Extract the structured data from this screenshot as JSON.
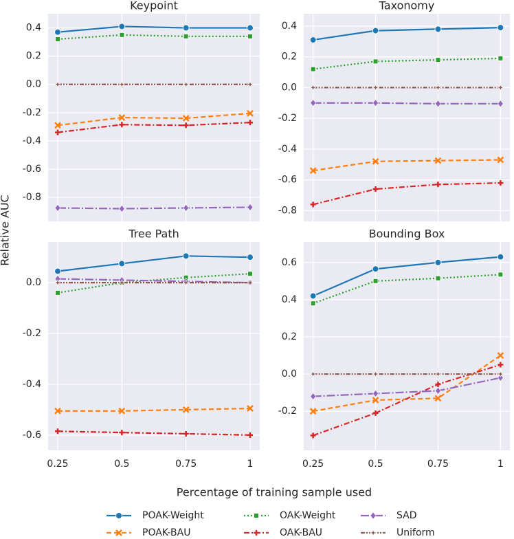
{
  "chart_data": [
    {
      "type": "line",
      "title": "Keypoint",
      "x": [
        0.25,
        0.5,
        0.75,
        1
      ],
      "xlim": [
        0.2125,
        1.0375
      ],
      "xticks": [
        0.25,
        0.5,
        0.75,
        1
      ],
      "ylim": [
        -0.97,
        0.5
      ],
      "yticks": [
        -0.8,
        -0.6,
        -0.4,
        -0.2,
        {
          "value": 0,
          "label": "0.0"
        },
        0.2,
        0.4
      ],
      "grid": true,
      "series": [
        {
          "name": "POAK-Weight",
          "color": "#1f77b4",
          "dash": "solid",
          "marker": "circle",
          "values": [
            0.37,
            0.41,
            0.4,
            0.4
          ]
        },
        {
          "name": "POAK-BAU",
          "color": "#ff7f0e",
          "dash": "dashed",
          "marker": "x",
          "values": [
            -0.29,
            -0.235,
            -0.24,
            -0.205
          ]
        },
        {
          "name": "OAK-Weight",
          "color": "#2ca02c",
          "dash": "dotted",
          "marker": "square",
          "values": [
            0.32,
            0.35,
            0.34,
            0.34
          ]
        },
        {
          "name": "OAK-BAU",
          "color": "#d62728",
          "dash": "dashdot",
          "marker": "plus",
          "values": [
            -0.34,
            -0.285,
            -0.29,
            -0.27
          ]
        },
        {
          "name": "SAD",
          "color": "#9467bd",
          "dash": "longdashdot",
          "marker": "diamond",
          "values": [
            -0.875,
            -0.88,
            -0.875,
            -0.87
          ]
        },
        {
          "name": "Uniform",
          "color": "#8c564b",
          "dash": "dashdotdot",
          "marker": "star",
          "values": [
            0,
            0,
            0,
            0
          ]
        }
      ]
    },
    {
      "type": "line",
      "title": "Taxonomy",
      "x": [
        0.25,
        0.5,
        0.75,
        1
      ],
      "xlim": [
        0.2125,
        1.0375
      ],
      "xticks": [
        0.25,
        0.5,
        0.75,
        1
      ],
      "ylim": [
        -0.87,
        0.48
      ],
      "yticks": [
        -0.8,
        -0.6,
        -0.4,
        -0.2,
        {
          "value": 0,
          "label": "0.0"
        },
        0.2,
        0.4
      ],
      "grid": true,
      "series": [
        {
          "name": "POAK-Weight",
          "color": "#1f77b4",
          "dash": "solid",
          "marker": "circle",
          "values": [
            0.31,
            0.37,
            0.38,
            0.39
          ]
        },
        {
          "name": "POAK-BAU",
          "color": "#ff7f0e",
          "dash": "dashed",
          "marker": "x",
          "values": [
            -0.54,
            -0.48,
            -0.475,
            -0.47
          ]
        },
        {
          "name": "OAK-Weight",
          "color": "#2ca02c",
          "dash": "dotted",
          "marker": "square",
          "values": [
            0.12,
            0.17,
            0.18,
            0.19
          ]
        },
        {
          "name": "OAK-BAU",
          "color": "#d62728",
          "dash": "dashdot",
          "marker": "plus",
          "values": [
            -0.76,
            -0.66,
            -0.63,
            -0.62
          ]
        },
        {
          "name": "SAD",
          "color": "#9467bd",
          "dash": "longdashdot",
          "marker": "diamond",
          "values": [
            -0.1,
            -0.1,
            -0.105,
            -0.105
          ]
        },
        {
          "name": "Uniform",
          "color": "#8c564b",
          "dash": "dashdotdot",
          "marker": "star",
          "values": [
            0,
            0,
            0,
            0
          ]
        }
      ]
    },
    {
      "type": "line",
      "title": "Tree Path",
      "x": [
        0.25,
        0.5,
        0.75,
        1
      ],
      "xlim": [
        0.2125,
        1.0375
      ],
      "xticks": [
        0.25,
        0.5,
        0.75,
        1
      ],
      "ylim": [
        -0.66,
        0.16
      ],
      "yticks": [
        -0.6,
        -0.4,
        -0.2,
        {
          "value": 0,
          "label": "0.0"
        }
      ],
      "grid": true,
      "series": [
        {
          "name": "POAK-Weight",
          "color": "#1f77b4",
          "dash": "solid",
          "marker": "circle",
          "values": [
            0.045,
            0.075,
            0.105,
            0.1
          ]
        },
        {
          "name": "POAK-BAU",
          "color": "#ff7f0e",
          "dash": "dashed",
          "marker": "x",
          "values": [
            -0.505,
            -0.505,
            -0.5,
            -0.495
          ]
        },
        {
          "name": "OAK-Weight",
          "color": "#2ca02c",
          "dash": "dotted",
          "marker": "square",
          "values": [
            -0.04,
            0.0,
            0.02,
            0.035
          ]
        },
        {
          "name": "OAK-BAU",
          "color": "#d62728",
          "dash": "dashdot",
          "marker": "plus",
          "values": [
            -0.585,
            -0.59,
            -0.595,
            -0.6
          ]
        },
        {
          "name": "SAD",
          "color": "#9467bd",
          "dash": "longdashdot",
          "marker": "diamond",
          "values": [
            0.015,
            0.01,
            0.005,
            0.0
          ]
        },
        {
          "name": "Uniform",
          "color": "#8c564b",
          "dash": "dashdotdot",
          "marker": "star",
          "values": [
            0,
            0,
            0,
            0
          ]
        }
      ]
    },
    {
      "type": "line",
      "title": "Bounding Box",
      "x": [
        0.25,
        0.5,
        0.75,
        1
      ],
      "xlim": [
        0.2125,
        1.0375
      ],
      "xticks": [
        0.25,
        0.5,
        0.75,
        1
      ],
      "ylim": [
        -0.41,
        0.71
      ],
      "yticks": [
        -0.2,
        {
          "value": 0,
          "label": "0.0"
        },
        0.2,
        0.4,
        0.6
      ],
      "grid": true,
      "series": [
        {
          "name": "POAK-Weight",
          "color": "#1f77b4",
          "dash": "solid",
          "marker": "circle",
          "values": [
            0.42,
            0.565,
            0.6,
            0.63
          ]
        },
        {
          "name": "POAK-BAU",
          "color": "#ff7f0e",
          "dash": "dashed",
          "marker": "x",
          "values": [
            -0.2,
            -0.14,
            -0.13,
            0.1
          ]
        },
        {
          "name": "OAK-Weight",
          "color": "#2ca02c",
          "dash": "dotted",
          "marker": "square",
          "values": [
            0.38,
            0.5,
            0.515,
            0.535
          ]
        },
        {
          "name": "OAK-BAU",
          "color": "#d62728",
          "dash": "dashdot",
          "marker": "plus",
          "values": [
            -0.33,
            -0.21,
            -0.055,
            0.05
          ]
        },
        {
          "name": "SAD",
          "color": "#9467bd",
          "dash": "longdashdot",
          "marker": "diamond",
          "values": [
            -0.12,
            -0.105,
            -0.09,
            -0.02
          ]
        },
        {
          "name": "Uniform",
          "color": "#8c564b",
          "dash": "dashdotdot",
          "marker": "star",
          "values": [
            0,
            0,
            0,
            0
          ]
        }
      ]
    }
  ],
  "xlabel": "Percentage of training sample used",
  "ylabel": "Relative AUC"
}
